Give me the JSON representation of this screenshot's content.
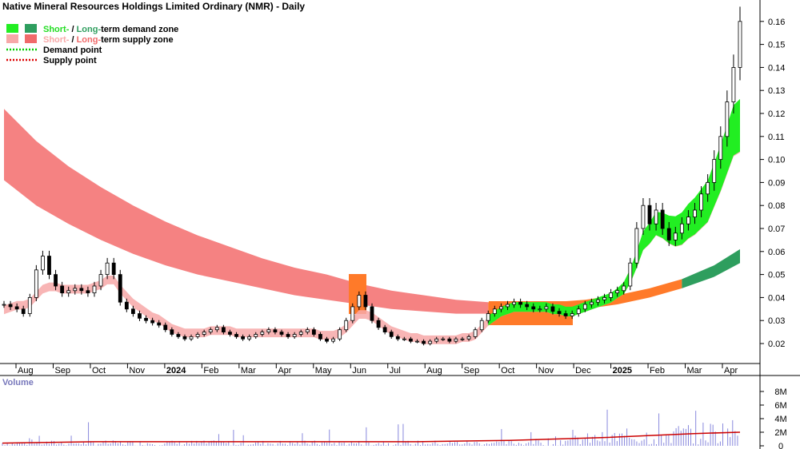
{
  "chart_data": {
    "type": "candlestick",
    "title": "Native Mineral Resources Holdings Limited Ordinary (NMR) - Daily",
    "legend": {
      "placement": "top-left",
      "items": [
        {
          "short": "Short-",
          "sep": " / ",
          "long": "Long-",
          "rest": "term demand zone",
          "short_color": "#22dd22",
          "long_color": "#2e9e5e"
        },
        {
          "short": "Short-",
          "sep": " / ",
          "long": "Long-",
          "rest": "term supply zone",
          "short_color": "#f7a8a8",
          "long_color": "#f06a6a"
        },
        {
          "label": "Demand point",
          "color": "#00cc00"
        },
        {
          "label": "Supply point",
          "color": "#dd0000"
        }
      ]
    },
    "y_axis": {
      "ticks": [
        "0.02",
        "0.03",
        "0.04",
        "0.05",
        "0.06",
        "0.07",
        "0.08",
        "0.09",
        "0.10",
        "0.11",
        "0.12",
        "0.13",
        "0.14",
        "0.15",
        "0.16"
      ],
      "ylim": [
        0.01,
        0.165
      ],
      "grid": false
    },
    "x_axis": {
      "ticks": [
        "Aug",
        "Sep",
        "Oct",
        "Nov",
        "2024",
        "Feb",
        "Mar",
        "Apr",
        "May",
        "Jun",
        "Jul",
        "Aug",
        "Sep",
        "Oct",
        "Nov",
        "Dec",
        "2025",
        "Feb",
        "Mar",
        "Apr"
      ]
    },
    "price_series": {
      "x": [
        0,
        4,
        8,
        12,
        16,
        20,
        24,
        28,
        32,
        36,
        40,
        44,
        48,
        52,
        56,
        60,
        64,
        68,
        72,
        76,
        80,
        84,
        88,
        92,
        96,
        100,
        104,
        108,
        112,
        116,
        120,
        124,
        128,
        132,
        136,
        140,
        144,
        148,
        152,
        156,
        160,
        164,
        168,
        172,
        176,
        180,
        184,
        188,
        192,
        196,
        200,
        204,
        208,
        212,
        216,
        220,
        224,
        228,
        232,
        236,
        240,
        244,
        248,
        252,
        256,
        260,
        264,
        268,
        272,
        276,
        280,
        284,
        288,
        292,
        296,
        300,
        304,
        308,
        312,
        316,
        320,
        324,
        328,
        332,
        336,
        340,
        344,
        348,
        352,
        356,
        360,
        364,
        368,
        372,
        376,
        380,
        384,
        388,
        392,
        396,
        400,
        404,
        408,
        412,
        416,
        420,
        424,
        428,
        432,
        436,
        440,
        444,
        448,
        452,
        456
      ],
      "close": [
        0.037,
        0.036,
        0.035,
        0.033,
        0.04,
        0.052,
        0.058,
        0.05,
        0.045,
        0.042,
        0.043,
        0.044,
        0.043,
        0.042,
        0.045,
        0.05,
        0.055,
        0.05,
        0.038,
        0.035,
        0.033,
        0.031,
        0.03,
        0.029,
        0.028,
        0.026,
        0.024,
        0.023,
        0.022,
        0.023,
        0.024,
        0.025,
        0.026,
        0.027,
        0.025,
        0.024,
        0.023,
        0.022,
        0.023,
        0.024,
        0.025,
        0.026,
        0.025,
        0.024,
        0.023,
        0.024,
        0.025,
        0.026,
        0.024,
        0.022,
        0.021,
        0.022,
        0.026,
        0.03,
        0.036,
        0.041,
        0.036,
        0.03,
        0.027,
        0.025,
        0.023,
        0.022,
        0.022,
        0.021,
        0.021,
        0.02,
        0.021,
        0.022,
        0.022,
        0.021,
        0.022,
        0.022,
        0.023,
        0.026,
        0.03,
        0.033,
        0.035,
        0.036,
        0.037,
        0.038,
        0.037,
        0.036,
        0.035,
        0.035,
        0.036,
        0.034,
        0.033,
        0.032,
        0.033,
        0.035,
        0.037,
        0.038,
        0.039,
        0.04,
        0.042,
        0.043,
        0.045,
        0.055,
        0.07,
        0.08,
        0.072,
        0.078,
        0.07,
        0.065,
        0.068,
        0.072,
        0.075,
        0.078,
        0.085,
        0.09,
        0.1,
        0.11,
        0.125,
        0.14,
        0.16
      ],
      "ma_short": [
        0.034,
        0.035,
        0.036,
        0.036,
        0.037,
        0.04,
        0.043,
        0.044,
        0.044,
        0.043,
        0.043,
        0.043,
        0.043,
        0.043,
        0.044,
        0.045,
        0.047,
        0.047,
        0.043,
        0.04,
        0.037,
        0.035,
        0.033,
        0.031,
        0.03,
        0.028,
        0.026,
        0.025,
        0.024,
        0.024,
        0.024,
        0.024,
        0.025,
        0.025,
        0.025,
        0.025,
        0.024,
        0.024,
        0.024,
        0.024,
        0.024,
        0.024,
        0.024,
        0.024,
        0.024,
        0.024,
        0.024,
        0.024,
        0.024,
        0.023,
        0.023,
        0.023,
        0.024,
        0.026,
        0.029,
        0.032,
        0.032,
        0.031,
        0.029,
        0.027,
        0.025,
        0.024,
        0.023,
        0.022,
        0.022,
        0.021,
        0.021,
        0.021,
        0.021,
        0.021,
        0.021,
        0.022,
        0.022,
        0.023,
        0.026,
        0.029,
        0.031,
        0.033,
        0.034,
        0.035,
        0.035,
        0.035,
        0.035,
        0.035,
        0.035,
        0.034,
        0.034,
        0.033,
        0.033,
        0.034,
        0.035,
        0.036,
        0.037,
        0.038,
        0.039,
        0.041,
        0.043,
        0.048,
        0.055,
        0.063,
        0.066,
        0.07,
        0.069,
        0.067,
        0.066,
        0.067,
        0.07,
        0.072,
        0.075,
        0.078,
        0.085,
        0.092,
        0.1,
        0.108,
        0.11
      ]
    },
    "long_term_zone": {
      "x": [
        0,
        20,
        40,
        60,
        80,
        100,
        120,
        140,
        160,
        180,
        200,
        220,
        240,
        260,
        280,
        300,
        320,
        340,
        360,
        380,
        400,
        420,
        440,
        456
      ],
      "upper": [
        0.122,
        0.108,
        0.097,
        0.088,
        0.08,
        0.073,
        0.067,
        0.062,
        0.057,
        0.053,
        0.05,
        0.046,
        0.043,
        0.041,
        0.039,
        0.038,
        0.037,
        0.038,
        0.039,
        0.041,
        0.044,
        0.048,
        0.054,
        0.061
      ],
      "lower": [
        0.091,
        0.08,
        0.072,
        0.065,
        0.059,
        0.054,
        0.05,
        0.047,
        0.044,
        0.041,
        0.039,
        0.037,
        0.035,
        0.034,
        0.033,
        0.033,
        0.033,
        0.034,
        0.035,
        0.037,
        0.04,
        0.044,
        0.049,
        0.055
      ]
    },
    "volume": {
      "label": "Volume",
      "ticks": [
        "0",
        "2M",
        "4M",
        "6M",
        "8M"
      ],
      "ylim": [
        0,
        9
      ],
      "unit": "M",
      "ma": [
        0.4,
        0.5,
        0.6,
        0.6,
        0.6,
        0.6,
        0.6,
        0.6,
        0.6,
        0.6,
        0.7,
        0.8,
        1.0,
        1.2,
        1.5,
        1.8,
        2.0
      ]
    }
  }
}
